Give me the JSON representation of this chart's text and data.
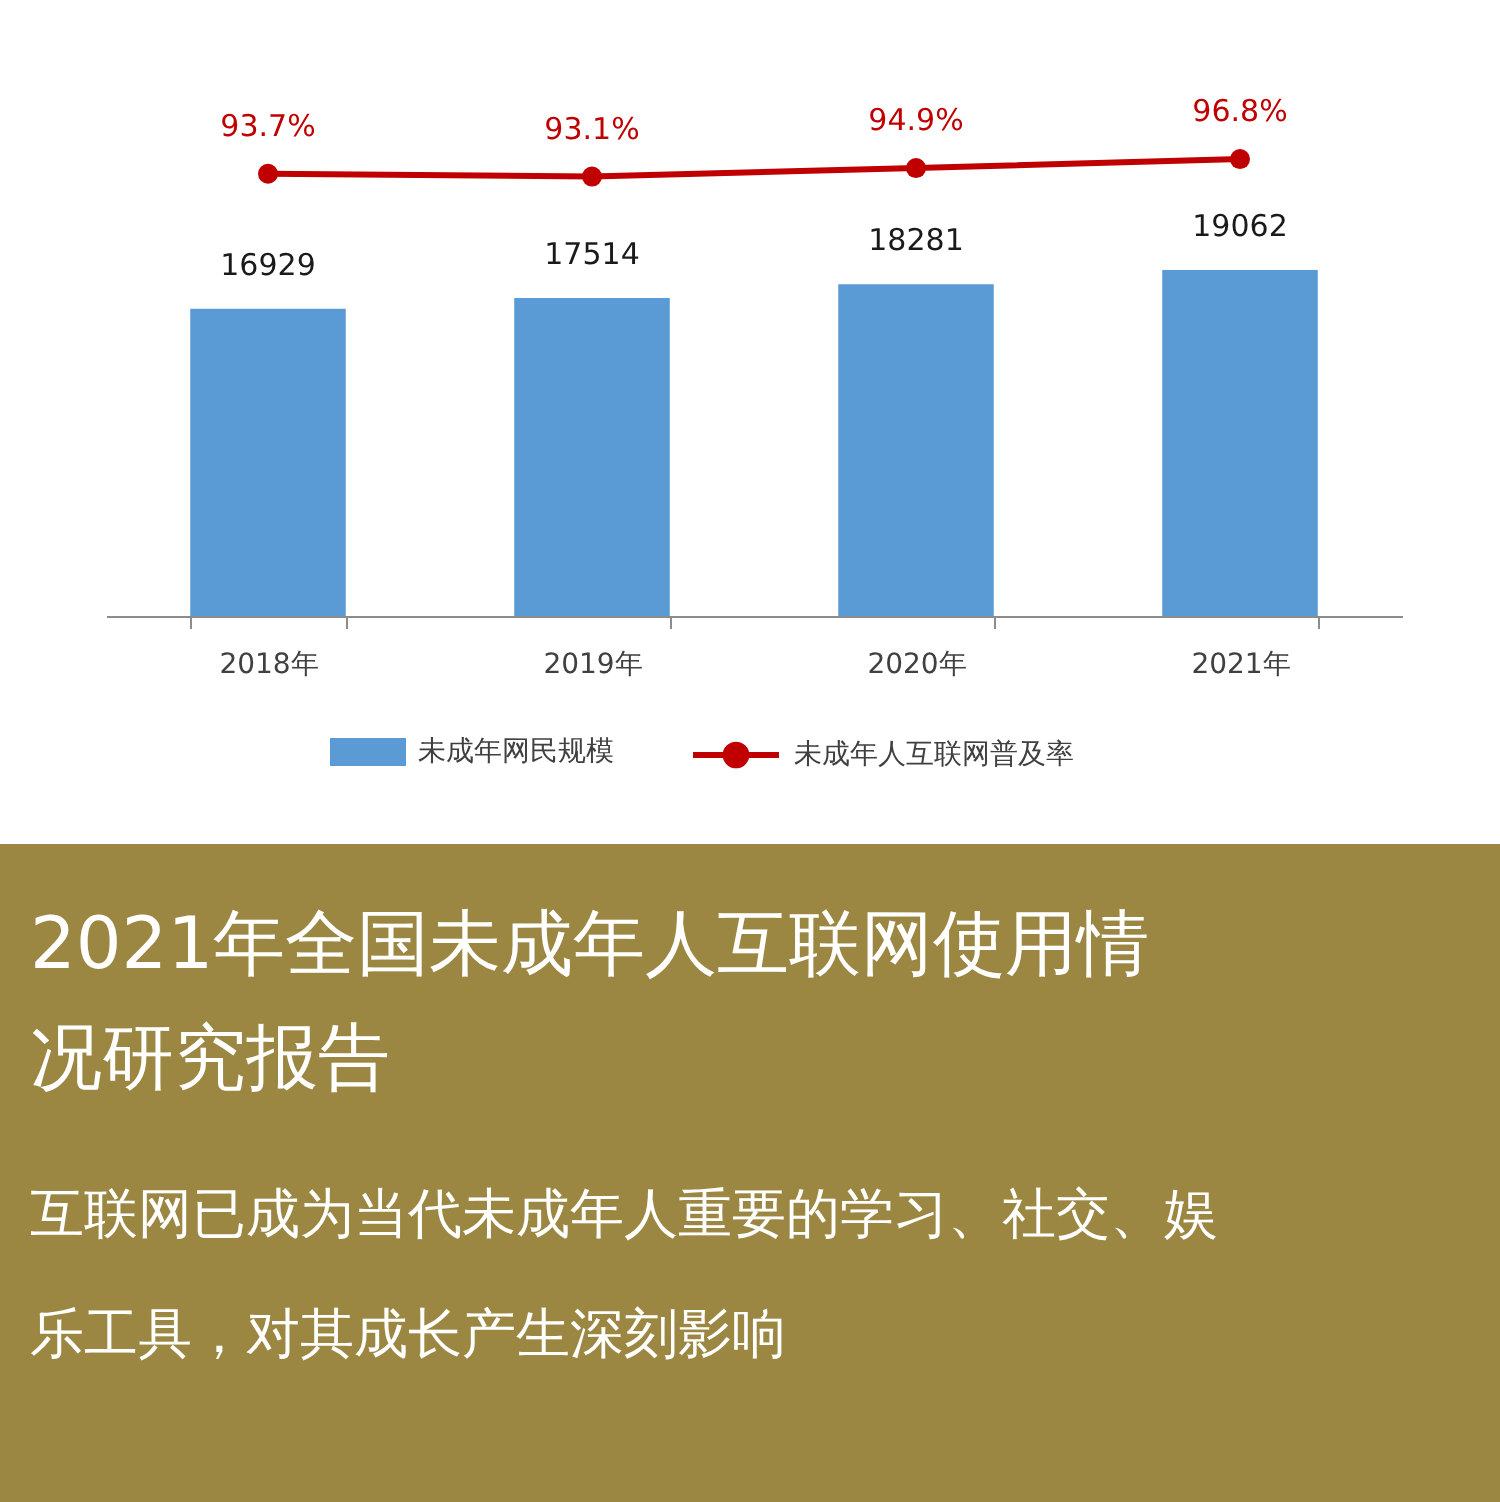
{
  "chart_data": [
    {
      "type": "bar",
      "title": "2021年全国未成年人互联网使用情况研究报告",
      "subtitle": "互联网已成为当代未成年人重要的学习、社交、娱乐工具，对其成长产生深刻影响",
      "categories": [
        "2018年",
        "2019年",
        "2020年",
        "2021年"
      ],
      "series": [
        {
          "name": "未成年网民规模",
          "type": "bar",
          "color": "#5b9bd5",
          "values": [
            16929,
            17514,
            18281,
            19062
          ],
          "value_labels": [
            "16929",
            "17514",
            "18281",
            "19062"
          ]
        }
      ],
      "tick_labels": "x",
      "legend": "bottom"
    },
    {
      "type": "line",
      "categories": [
        "2018年",
        "2019年",
        "2020年",
        "2021年"
      ],
      "series": [
        {
          "name": "未成年人互联网普及率",
          "color": "#c00000",
          "values": [
            93.7,
            93.1,
            94.9,
            96.8
          ],
          "value_labels": [
            "93.7%",
            "93.1%",
            "94.9%",
            "96.8%"
          ]
        }
      ],
      "tick_labels": false,
      "legend": "bottom",
      "marker": "circle"
    }
  ]
}
